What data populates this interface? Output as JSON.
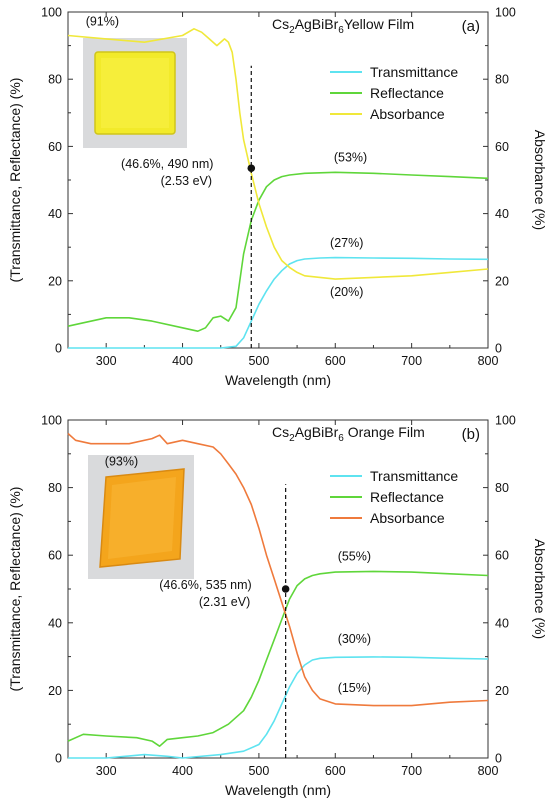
{
  "chart_data": [
    {
      "type": "line",
      "panel": "(a)",
      "title_main": "Cs",
      "title_sub1": "2",
      "title_mid": "AgBiBr",
      "title_sub2": "6",
      "title_tail": "Yellow Film",
      "xlabel": "Wavelength (nm)",
      "ylabel_left": "(Transmittance, Reflectance) (%)",
      "ylabel_right": "Absorbance (%)",
      "xlim": [
        250,
        800
      ],
      "ylim": [
        0,
        100
      ],
      "x_ticks": [
        "300",
        "400",
        "500",
        "600",
        "700",
        "800"
      ],
      "y_ticks": [
        "0",
        "20",
        "40",
        "60",
        "80",
        "100"
      ],
      "y_ticks_right": [
        "0",
        "20",
        "40",
        "60",
        "80",
        "100"
      ],
      "grid": false,
      "legend_position": "top-right",
      "inset": "photo of yellow film",
      "series": [
        {
          "name": "Transmittance",
          "color": "#5ee3f0",
          "x": [
            250,
            300,
            400,
            450,
            470,
            480,
            490,
            500,
            510,
            520,
            530,
            540,
            550,
            560,
            580,
            600,
            650,
            700,
            750,
            800
          ],
          "y": [
            0,
            0,
            0,
            0,
            0.5,
            3,
            8,
            13,
            17,
            20.5,
            23,
            25,
            26,
            26.5,
            26.8,
            26.9,
            26.8,
            26.7,
            26.5,
            26.4
          ]
        },
        {
          "name": "Reflectance",
          "color": "#5fd63a",
          "x": [
            250,
            270,
            300,
            330,
            360,
            400,
            420,
            430,
            440,
            450,
            460,
            470,
            480,
            490,
            500,
            510,
            520,
            530,
            540,
            560,
            600,
            650,
            700,
            750,
            800
          ],
          "y": [
            6.5,
            7.5,
            9,
            9,
            8,
            6,
            5,
            6,
            9,
            9.5,
            8,
            12,
            28,
            38,
            44,
            48,
            50,
            51,
            51.5,
            52,
            52.3,
            52,
            51.5,
            51,
            50.5
          ]
        },
        {
          "name": "Absorbance",
          "color": "#f0e83a",
          "x": [
            250,
            300,
            350,
            400,
            415,
            425,
            435,
            445,
            455,
            460,
            465,
            470,
            475,
            480,
            490,
            500,
            510,
            520,
            530,
            540,
            550,
            560,
            580,
            600,
            650,
            700,
            750,
            800
          ],
          "y": [
            93,
            92,
            91,
            93,
            95,
            94,
            92,
            90,
            92,
            91,
            88,
            80,
            70,
            62,
            52,
            43,
            36,
            30,
            26,
            24,
            22.5,
            21.5,
            21,
            20.5,
            21,
            21.5,
            22.5,
            23.5
          ]
        }
      ],
      "marker": {
        "x": 490,
        "y": 53.5,
        "color": "#111111"
      },
      "vline_x": 490,
      "annotations": [
        {
          "text": "(91%)",
          "x": 295,
          "y": 96
        },
        {
          "text": "(53%)",
          "x": 620,
          "y": 55.5
        },
        {
          "text": "(27%)",
          "x": 615,
          "y": 30
        },
        {
          "text": "(20%)",
          "x": 615,
          "y": 15.5
        },
        {
          "text": "(46.6%, 490 nm)",
          "x": 380,
          "y": 53.5
        },
        {
          "text": "(2.53 eV)",
          "x": 405,
          "y": 48.5
        }
      ]
    },
    {
      "type": "line",
      "panel": "(b)",
      "title_main": "Cs",
      "title_sub1": "2",
      "title_mid": "AgBiBr",
      "title_sub2": "6",
      "title_tail": " Orange Film",
      "xlabel": "Wavelength (nm)",
      "ylabel_left": "(Transmittance, Reflectance) (%)",
      "ylabel_right": "Absorbance (%)",
      "xlim": [
        250,
        800
      ],
      "ylim": [
        0,
        100
      ],
      "x_ticks": [
        "300",
        "400",
        "500",
        "600",
        "700",
        "800"
      ],
      "y_ticks": [
        "0",
        "20",
        "40",
        "60",
        "80",
        "100"
      ],
      "y_ticks_right": [
        "0",
        "20",
        "40",
        "60",
        "80",
        "100"
      ],
      "grid": false,
      "legend_position": "top-right",
      "inset": "photo of orange film",
      "series": [
        {
          "name": "Transmittance",
          "color": "#5ee3f0",
          "x": [
            250,
            300,
            350,
            380,
            400,
            450,
            480,
            500,
            510,
            520,
            530,
            540,
            550,
            560,
            570,
            580,
            600,
            650,
            700,
            750,
            800
          ],
          "y": [
            0,
            0,
            1,
            0.5,
            0,
            1,
            2,
            4,
            7,
            11,
            16,
            21,
            25,
            27.5,
            29,
            29.5,
            29.8,
            29.9,
            29.8,
            29.5,
            29.3
          ]
        },
        {
          "name": "Reflectance",
          "color": "#5fd63a",
          "x": [
            250,
            270,
            300,
            340,
            360,
            370,
            380,
            400,
            420,
            440,
            460,
            480,
            490,
            500,
            510,
            520,
            530,
            540,
            550,
            560,
            570,
            580,
            600,
            650,
            700,
            750,
            800
          ],
          "y": [
            5,
            7,
            6.5,
            6,
            5,
            3.5,
            5.5,
            6,
            6.5,
            7.5,
            10,
            14,
            18,
            23,
            29,
            35,
            41,
            47,
            51,
            53,
            54,
            54.5,
            55,
            55.2,
            55,
            54.5,
            54
          ]
        },
        {
          "name": "Absorbance",
          "color": "#ef7a3c",
          "x": [
            250,
            260,
            280,
            300,
            330,
            360,
            370,
            380,
            400,
            420,
            440,
            450,
            460,
            470,
            480,
            490,
            500,
            510,
            520,
            530,
            540,
            550,
            560,
            570,
            580,
            600,
            650,
            700,
            750,
            800
          ],
          "y": [
            96,
            94,
            93,
            93,
            93,
            94.5,
            95.5,
            93,
            94,
            93,
            92,
            90,
            87,
            84,
            80,
            75,
            68,
            60,
            53,
            46,
            39,
            31,
            24,
            20,
            17.5,
            16,
            15.5,
            15.5,
            16.5,
            17
          ]
        }
      ],
      "marker": {
        "x": 535,
        "y": 50,
        "color": "#111111"
      },
      "vline_x": 535,
      "annotations": [
        {
          "text": "(93%)",
          "x": 320,
          "y": 86.5
        },
        {
          "text": "(55%)",
          "x": 625,
          "y": 58.5
        },
        {
          "text": "(30%)",
          "x": 625,
          "y": 34
        },
        {
          "text": "(15%)",
          "x": 625,
          "y": 19.5
        },
        {
          "text": "(46.6%, 535 nm)",
          "x": 430,
          "y": 50
        },
        {
          "text": "(2.31 eV)",
          "x": 455,
          "y": 45
        }
      ]
    }
  ]
}
